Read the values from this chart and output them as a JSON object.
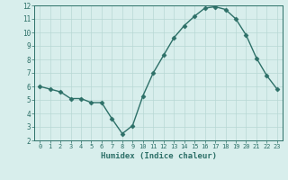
{
  "x": [
    0,
    1,
    2,
    3,
    4,
    5,
    6,
    7,
    8,
    9,
    10,
    11,
    12,
    13,
    14,
    15,
    16,
    17,
    18,
    19,
    20,
    21,
    22,
    23
  ],
  "y": [
    6.0,
    5.8,
    5.6,
    5.1,
    5.1,
    4.8,
    4.8,
    3.6,
    2.5,
    3.1,
    5.3,
    7.0,
    8.3,
    9.6,
    10.5,
    11.2,
    11.8,
    11.9,
    11.7,
    11.0,
    9.8,
    8.1,
    6.8,
    5.8
  ],
  "xlabel": "Humidex (Indice chaleur)",
  "ylim": [
    2,
    12
  ],
  "xlim": [
    -0.5,
    23.5
  ],
  "yticks": [
    2,
    3,
    4,
    5,
    6,
    7,
    8,
    9,
    10,
    11,
    12
  ],
  "xticks": [
    0,
    1,
    2,
    3,
    4,
    5,
    6,
    7,
    8,
    9,
    10,
    11,
    12,
    13,
    14,
    15,
    16,
    17,
    18,
    19,
    20,
    21,
    22,
    23
  ],
  "line_color": "#2d7068",
  "marker": "D",
  "marker_size": 2.5,
  "bg_color": "#d8eeec",
  "grid_color": "#b8d8d4",
  "axis_color": "#2d7068",
  "tick_color": "#2d7068",
  "label_color": "#2d7068",
  "font_family": "monospace"
}
